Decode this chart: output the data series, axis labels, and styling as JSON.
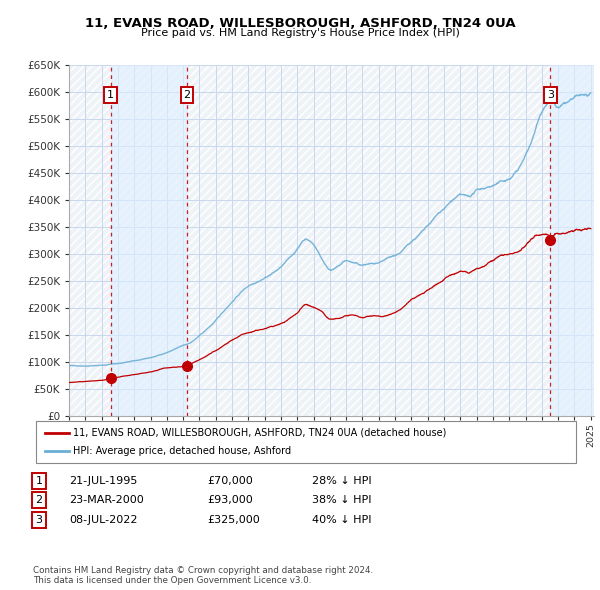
{
  "title": "11, EVANS ROAD, WILLESBOROUGH, ASHFORD, TN24 0UA",
  "subtitle": "Price paid vs. HM Land Registry's House Price Index (HPI)",
  "ylabel_ticks": [
    "£0",
    "£50K",
    "£100K",
    "£150K",
    "£200K",
    "£250K",
    "£300K",
    "£350K",
    "£400K",
    "£450K",
    "£500K",
    "£550K",
    "£600K",
    "£650K"
  ],
  "ytick_vals": [
    0,
    50000,
    100000,
    150000,
    200000,
    250000,
    300000,
    350000,
    400000,
    450000,
    500000,
    550000,
    600000,
    650000
  ],
  "xlim_start": 1993.0,
  "xlim_end": 2025.2,
  "ylim_min": 0,
  "ylim_max": 650000,
  "hpi_color": "#6aaed6",
  "price_color": "#c00000",
  "bg_color": "#dce6f1",
  "chart_bg": "#ffffff",
  "grid_color": "#c8d8ec",
  "shade_color": "#ddeeff",
  "sale_points": [
    {
      "date": 1995.55,
      "price": 70000,
      "label": "1"
    },
    {
      "date": 2000.23,
      "price": 93000,
      "label": "2"
    },
    {
      "date": 2022.52,
      "price": 325000,
      "label": "3"
    }
  ],
  "vline_dates": [
    1995.55,
    2000.23,
    2022.52
  ],
  "legend_entries": [
    {
      "label": "11, EVANS ROAD, WILLESBOROUGH, ASHFORD, TN24 0UA (detached house)",
      "color": "#c00000"
    },
    {
      "label": "HPI: Average price, detached house, Ashford",
      "color": "#6aaed6"
    }
  ],
  "table_rows": [
    {
      "num": "1",
      "date": "21-JUL-1995",
      "price": "£70,000",
      "hpi": "28% ↓ HPI"
    },
    {
      "num": "2",
      "date": "23-MAR-2000",
      "price": "£93,000",
      "hpi": "38% ↓ HPI"
    },
    {
      "num": "3",
      "date": "08-JUL-2022",
      "price": "£325,000",
      "hpi": "40% ↓ HPI"
    }
  ],
  "footnote": "Contains HM Land Registry data © Crown copyright and database right 2024.\nThis data is licensed under the Open Government Licence v3.0."
}
